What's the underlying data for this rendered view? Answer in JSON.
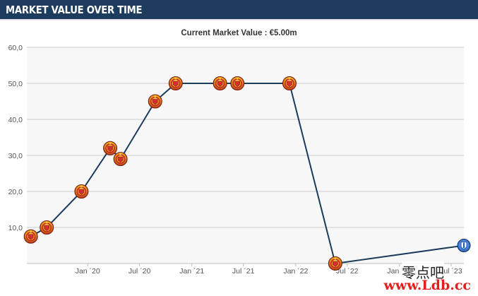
{
  "header": {
    "title": "MARKET VALUE OVER TIME"
  },
  "chart_data": {
    "type": "line",
    "title": "Current Market Value : €5.00m",
    "xlabel": "",
    "ylabel": "",
    "ylim": [
      0,
      60
    ],
    "yticks": [
      10,
      20,
      30,
      40,
      50,
      60
    ],
    "ytick_labels": [
      "10,0",
      "20,0",
      "30,0",
      "40,0",
      "50,0",
      "60,0"
    ],
    "xlim": [
      "2019-06-01",
      "2023-08-15"
    ],
    "xticks": [
      "2020-01-01",
      "2020-07-01",
      "2021-01-01",
      "2021-07-01",
      "2022-01-01",
      "2022-07-01",
      "2023-01-01",
      "2023-07-01"
    ],
    "xtick_labels": [
      "Jan ´20",
      "Jul ´20",
      "Jan ´21",
      "Jul ´21",
      "Jan ´22",
      "Jul ´22",
      "Jan ´23",
      "Jul ´23"
    ],
    "grid": true,
    "series": [
      {
        "color": "#1d3b5c",
        "points": [
          {
            "x": "2019-06-15",
            "y": 7.5,
            "club": "manchester-united"
          },
          {
            "x": "2019-08-10",
            "y": 10,
            "club": "manchester-united"
          },
          {
            "x": "2019-12-10",
            "y": 20,
            "club": "manchester-united"
          },
          {
            "x": "2020-03-20",
            "y": 32,
            "club": "manchester-united"
          },
          {
            "x": "2020-04-25",
            "y": 29,
            "club": "manchester-united"
          },
          {
            "x": "2020-08-25",
            "y": 45,
            "club": "manchester-united"
          },
          {
            "x": "2020-11-05",
            "y": 50,
            "club": "manchester-united"
          },
          {
            "x": "2021-04-10",
            "y": 50,
            "club": "manchester-united"
          },
          {
            "x": "2021-06-10",
            "y": 50,
            "club": "manchester-united"
          },
          {
            "x": "2021-12-10",
            "y": 50,
            "club": "manchester-united"
          },
          {
            "x": "2022-05-20",
            "y": 0,
            "club": "manchester-united"
          },
          {
            "x": "2023-08-15",
            "y": 5,
            "club": "getafe"
          }
        ]
      }
    ]
  },
  "colors": {
    "header_bg": "#1d3b5c",
    "line": "#1d3b5c",
    "plot_bg": "#f7f7f7",
    "grid": "#cccccc"
  },
  "icons": {
    "manchester-united": "manchester-united-crest-icon",
    "getafe": "getafe-crest-icon"
  },
  "watermark": {
    "cn": "零点吧",
    "url": "www.Ldb.cc"
  }
}
